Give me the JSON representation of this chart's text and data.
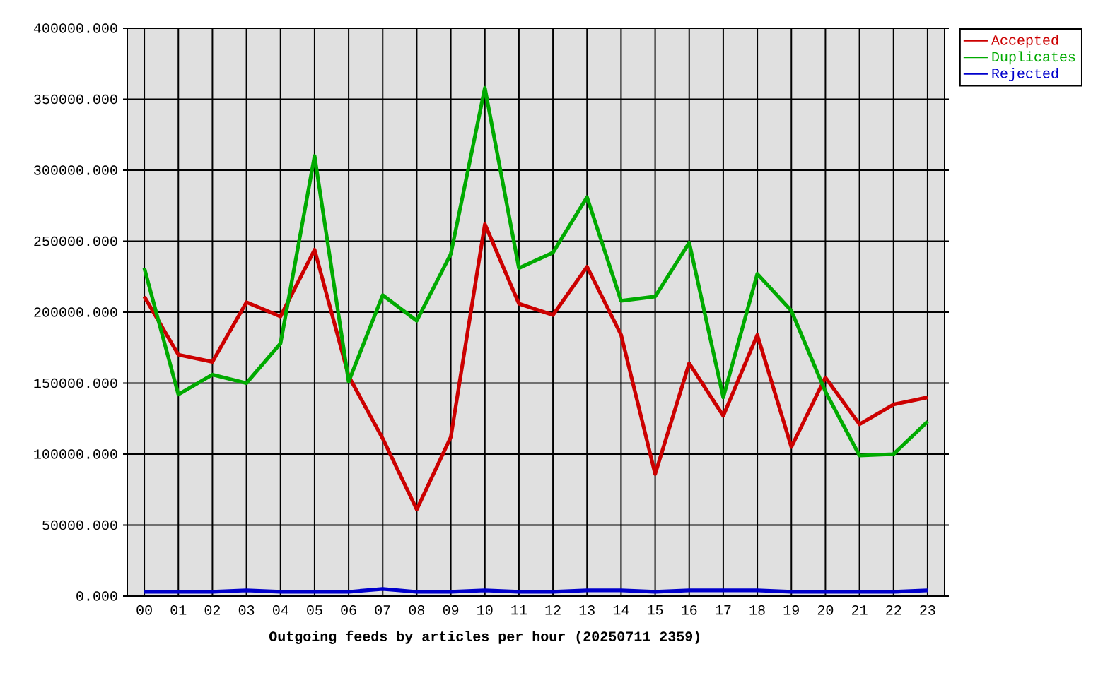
{
  "chart_data": {
    "type": "line",
    "xlabel": "Outgoing feeds by articles per hour (20250711 2359)",
    "categories": [
      "00",
      "01",
      "02",
      "03",
      "04",
      "05",
      "06",
      "07",
      "08",
      "09",
      "10",
      "11",
      "12",
      "13",
      "14",
      "15",
      "16",
      "17",
      "18",
      "19",
      "20",
      "21",
      "22",
      "23"
    ],
    "series": [
      {
        "name": "Accepted",
        "color": "#cc0000",
        "values": [
          211000,
          170000,
          165000,
          207000,
          197000,
          244000,
          155000,
          111000,
          61000,
          112000,
          262000,
          206000,
          198000,
          232000,
          184000,
          86000,
          164000,
          127000,
          184000,
          105000,
          154000,
          121000,
          135000,
          140000
        ]
      },
      {
        "name": "Duplicates",
        "color": "#00aa00",
        "values": [
          231000,
          142000,
          156000,
          150000,
          178000,
          310000,
          151000,
          212000,
          194000,
          241000,
          358000,
          231000,
          242000,
          281000,
          208000,
          211000,
          249000,
          140000,
          227000,
          201000,
          144000,
          99000,
          100000,
          123000
        ]
      },
      {
        "name": "Rejected",
        "color": "#0000cc",
        "values": [
          3000,
          3000,
          3000,
          4000,
          3000,
          3000,
          3000,
          5000,
          3000,
          3000,
          4000,
          3000,
          3000,
          4000,
          4000,
          3000,
          4000,
          4000,
          4000,
          3000,
          3000,
          3000,
          3000,
          4000
        ]
      }
    ],
    "ylim": [
      0,
      400000
    ],
    "yticks": [
      {
        "value": 0,
        "label": "0.000"
      },
      {
        "value": 50000,
        "label": "50000.000"
      },
      {
        "value": 100000,
        "label": "100000.000"
      },
      {
        "value": 150000,
        "label": "150000.000"
      },
      {
        "value": 200000,
        "label": "200000.000"
      },
      {
        "value": 250000,
        "label": "250000.000"
      },
      {
        "value": 300000,
        "label": "300000.000"
      },
      {
        "value": 350000,
        "label": "350000.000"
      },
      {
        "value": 400000,
        "label": "400000.000"
      }
    ],
    "grid": true,
    "legend": "right",
    "line_style": "solid"
  }
}
